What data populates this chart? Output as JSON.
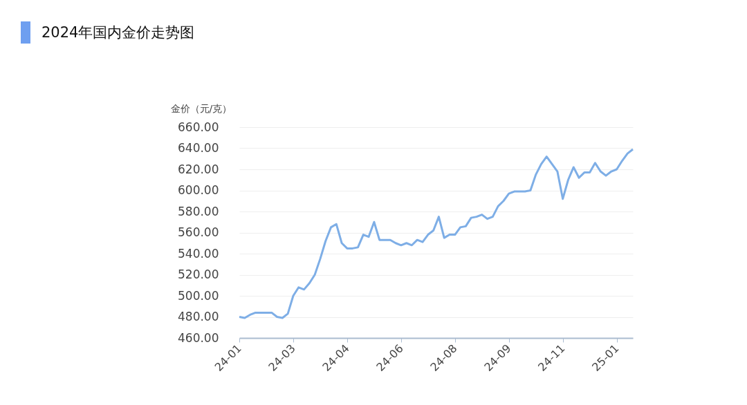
{
  "chart_data": {
    "type": "line",
    "title": "2024年国内金价走势图",
    "ylabel": "金价（元/克）",
    "categories": [
      "24-01",
      null,
      null,
      null,
      null,
      null,
      null,
      null,
      null,
      null,
      "24-03",
      null,
      null,
      null,
      null,
      null,
      null,
      null,
      null,
      null,
      "24-04",
      null,
      null,
      null,
      null,
      null,
      null,
      null,
      null,
      null,
      "24-06",
      null,
      null,
      null,
      null,
      null,
      null,
      null,
      null,
      null,
      "24-08",
      null,
      null,
      null,
      null,
      null,
      null,
      null,
      null,
      null,
      "24-09",
      null,
      null,
      null,
      null,
      null,
      null,
      null,
      null,
      null,
      "24-11",
      null,
      null,
      null,
      null,
      null,
      null,
      null,
      null,
      null,
      "25-01",
      null,
      null,
      null
    ],
    "series": [
      {
        "color": "#7eaee6",
        "values": [
          480,
          479,
          482,
          484,
          484,
          484,
          484,
          480,
          479,
          483,
          500,
          508,
          506,
          512,
          520,
          535,
          552,
          565,
          568,
          550,
          545,
          545,
          546,
          558,
          556,
          570,
          553,
          553,
          553,
          550,
          548,
          550,
          548,
          553,
          551,
          558,
          562,
          575,
          555,
          558,
          558,
          565,
          566,
          574,
          575,
          577,
          573,
          575,
          585,
          590,
          597,
          599,
          599,
          599,
          600,
          615,
          625,
          632,
          625,
          618,
          592,
          610,
          622,
          612,
          617,
          617,
          626,
          618,
          614,
          618,
          620,
          628,
          635,
          639
        ]
      }
    ],
    "ylim": [
      460,
      660
    ],
    "yticks": [
      {
        "value": 460,
        "label": "460.00"
      },
      {
        "value": 480,
        "label": "480.00"
      },
      {
        "value": 500,
        "label": "500.00"
      },
      {
        "value": 520,
        "label": "520.00"
      },
      {
        "value": 540,
        "label": "540.00"
      },
      {
        "value": 560,
        "label": "560.00"
      },
      {
        "value": 580,
        "label": "580.00"
      },
      {
        "value": 600,
        "label": "600.00"
      },
      {
        "value": 620,
        "label": "620.00"
      },
      {
        "value": 640,
        "label": "640.00"
      },
      {
        "value": 660,
        "label": "660.00"
      }
    ],
    "grid": "y",
    "legend": false,
    "marker": "none",
    "line_style": "solid"
  }
}
